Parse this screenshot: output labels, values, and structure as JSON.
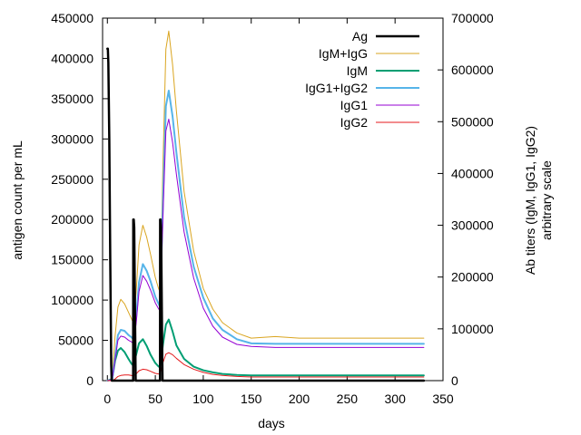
{
  "chart_data": {
    "type": "line",
    "title": "",
    "xlabel": "days",
    "ylabel": "antigen count per mL",
    "y2label_line1": "Ab titers (IgM, IgG1, IgG2)",
    "y2label_line2": "arbitrary scale",
    "xlim": [
      -5,
      350
    ],
    "ylim": [
      0,
      450000
    ],
    "y2lim": [
      0,
      700000
    ],
    "xticks": [
      0,
      50,
      100,
      150,
      200,
      250,
      300,
      350
    ],
    "yticks": [
      0,
      50000,
      100000,
      150000,
      200000,
      250000,
      300000,
      350000,
      400000,
      450000
    ],
    "y2ticks": [
      0,
      100000,
      200000,
      300000,
      400000,
      500000,
      600000,
      700000
    ],
    "grid": false,
    "legend_position": "top-right",
    "series": [
      {
        "name": "Ag",
        "axis": "y",
        "color": "#000000",
        "width": 2.5,
        "x": [
          0,
          0.5,
          1,
          2,
          3,
          4,
          4.5,
          5,
          26.9,
          27,
          27.5,
          28,
          29,
          29.5,
          30,
          54.9,
          55,
          55.5,
          56,
          57,
          57.5,
          58,
          330
        ],
        "values": [
          412000,
          412000,
          395000,
          300000,
          150000,
          20000,
          0,
          0,
          0,
          200000,
          200000,
          190000,
          60000,
          0,
          0,
          0,
          200000,
          200000,
          190000,
          60000,
          0,
          0,
          0
        ]
      },
      {
        "name": "IgM+IgG",
        "axis": "y2",
        "color": "#DAA520",
        "width": 1,
        "x": [
          0,
          5,
          8,
          11,
          14,
          18,
          22,
          25,
          27,
          30,
          33,
          37,
          41,
          45,
          50,
          53,
          55,
          58,
          61,
          64,
          68,
          72,
          80,
          90,
          100,
          110,
          120,
          135,
          150,
          175,
          200,
          250,
          300,
          330
        ],
        "values": [
          0,
          5000,
          85000,
          142000,
          157000,
          148000,
          132000,
          120000,
          112000,
          170000,
          262000,
          300000,
          277000,
          244000,
          199000,
          180000,
          170000,
          420000,
          640000,
          675000,
          610000,
          520000,
          365000,
          250000,
          178000,
          138000,
          112000,
          92000,
          82000,
          85000,
          82000,
          82000,
          82000,
          82000
        ]
      },
      {
        "name": "IgM",
        "axis": "y2",
        "color": "#009E73",
        "width": 2,
        "x": [
          0,
          5,
          8,
          11,
          14,
          18,
          22,
          25,
          27,
          30,
          33,
          37,
          41,
          45,
          50,
          53,
          55,
          58,
          61,
          64,
          68,
          72,
          80,
          90,
          100,
          110,
          120,
          135,
          150,
          175,
          200,
          250,
          300,
          330
        ],
        "values": [
          0,
          3000,
          38000,
          58000,
          63000,
          55000,
          42000,
          33000,
          29000,
          50000,
          72000,
          80000,
          67000,
          50000,
          34000,
          28000,
          25000,
          70000,
          108000,
          118000,
          95000,
          68000,
          42000,
          27000,
          20000,
          16000,
          13000,
          11000,
          10000,
          10000,
          10000,
          10000,
          10000,
          10000
        ]
      },
      {
        "name": "IgG1+IgG2",
        "axis": "y2",
        "color": "#56B4E9",
        "width": 2,
        "x": [
          0,
          5,
          8,
          11,
          14,
          18,
          22,
          25,
          27,
          30,
          33,
          37,
          41,
          45,
          50,
          53,
          55,
          58,
          61,
          64,
          68,
          72,
          80,
          90,
          100,
          110,
          120,
          135,
          150,
          175,
          200,
          250,
          300,
          330
        ],
        "values": [
          0,
          2000,
          45000,
          88000,
          98000,
          96000,
          88000,
          84000,
          80000,
          120000,
          190000,
          225000,
          212000,
          192000,
          162000,
          150000,
          142000,
          350000,
          530000,
          560000,
          510000,
          440000,
          315000,
          220000,
          160000,
          120000,
          98000,
          80000,
          72000,
          71000,
          71000,
          71000,
          71000,
          71000
        ]
      },
      {
        "name": "IgG1",
        "axis": "y2",
        "color": "#9400D3",
        "width": 1,
        "x": [
          0,
          5,
          8,
          11,
          14,
          18,
          22,
          25,
          27,
          30,
          33,
          37,
          41,
          45,
          50,
          53,
          55,
          58,
          61,
          64,
          68,
          72,
          80,
          90,
          100,
          110,
          120,
          135,
          150,
          175,
          200,
          250,
          300,
          330
        ],
        "values": [
          0,
          2000,
          40000,
          78000,
          86000,
          84000,
          78000,
          75000,
          72000,
          110000,
          172000,
          203000,
          192000,
          175000,
          150000,
          140000,
          134000,
          320000,
          482000,
          505000,
          460000,
          398000,
          287000,
          198000,
          140000,
          105000,
          84000,
          70000,
          66000,
          64000,
          64000,
          64000,
          64000,
          64000
        ]
      },
      {
        "name": "IgG2",
        "axis": "y2",
        "color": "#E41A1C",
        "width": 1,
        "x": [
          0,
          5,
          8,
          11,
          14,
          18,
          22,
          25,
          27,
          30,
          33,
          37,
          41,
          45,
          50,
          53,
          55,
          58,
          61,
          64,
          68,
          72,
          80,
          90,
          100,
          110,
          120,
          135,
          150,
          175,
          200,
          250,
          300,
          330
        ],
        "values": [
          0,
          0,
          3000,
          8000,
          10000,
          11000,
          11000,
          10000,
          9000,
          13000,
          19000,
          22000,
          21000,
          18000,
          14000,
          13000,
          12000,
          35000,
          51000,
          54000,
          50000,
          43000,
          31000,
          22000,
          16000,
          12000,
          10000,
          8000,
          7000,
          7000,
          7000,
          7000,
          7000,
          7000
        ]
      }
    ]
  }
}
